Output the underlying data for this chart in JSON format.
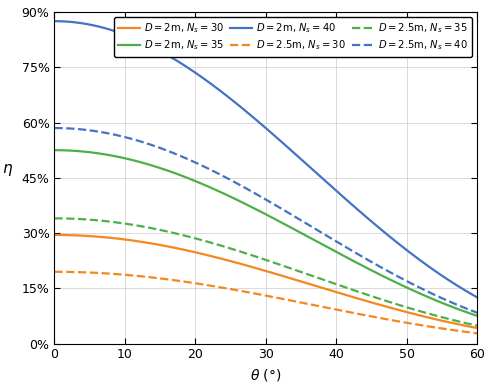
{
  "title": "",
  "xlabel": "$\\theta$ (\\degree)$",
  "ylabel": "$\\eta$",
  "xlim": [
    0,
    60
  ],
  "ylim": [
    0.0,
    0.9
  ],
  "yticks": [
    0.0,
    0.15,
    0.3,
    0.45,
    0.6,
    0.75,
    0.9
  ],
  "ytick_labels": [
    "0%",
    "15%",
    "30%",
    "45%",
    "60%",
    "75%",
    "90%"
  ],
  "xticks": [
    0,
    10,
    20,
    30,
    40,
    50,
    60
  ],
  "series": [
    {
      "D": 2.0,
      "Ns": 30,
      "linestyle": "solid",
      "color": "#F5871F",
      "eta0": 0.295,
      "alpha": 2.8
    },
    {
      "D": 2.0,
      "Ns": 35,
      "linestyle": "solid",
      "color": "#4DAF4A",
      "eta0": 0.525,
      "alpha": 2.8
    },
    {
      "D": 2.0,
      "Ns": 40,
      "linestyle": "solid",
      "color": "#4472C4",
      "eta0": 0.875,
      "alpha": 2.8
    },
    {
      "D": 2.5,
      "Ns": 30,
      "linestyle": "dashed",
      "color": "#F5871F",
      "eta0": 0.195,
      "alpha": 2.8
    },
    {
      "D": 2.5,
      "Ns": 35,
      "linestyle": "dashed",
      "color": "#4DAF4A",
      "eta0": 0.34,
      "alpha": 2.8
    },
    {
      "D": 2.5,
      "Ns": 40,
      "linestyle": "dashed",
      "color": "#4472C4",
      "eta0": 0.585,
      "alpha": 2.8
    }
  ],
  "legend_labels": [
    "$D = 2$m, $N_s = 30$",
    "$D = 2$m, $N_s = 35$",
    "$D = 2$m, $N_s = 40$",
    "$D = 2.5$m, $N_s = 30$",
    "$D = 2.5$m, $N_s = 35$",
    "$D = 2.5$m, $N_s = 40$"
  ],
  "figsize": [
    4.92,
    3.9
  ],
  "dpi": 100,
  "linewidth": 1.6
}
